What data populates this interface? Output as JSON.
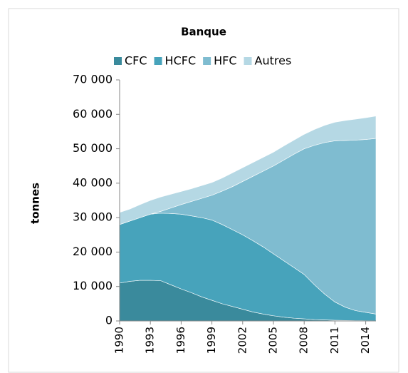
{
  "chart_data": {
    "type": "stacked_area",
    "title": "Banque",
    "ylabel": "tonnes",
    "x": [
      1990,
      1991,
      1992,
      1993,
      1994,
      1995,
      1996,
      1997,
      1998,
      1999,
      2000,
      2001,
      2002,
      2003,
      2004,
      2005,
      2006,
      2007,
      2008,
      2009,
      2010,
      2011,
      2012,
      2013,
      2014,
      2015
    ],
    "xlim": [
      1990,
      2015
    ],
    "xticks": [
      1990,
      1993,
      1996,
      1999,
      2002,
      2005,
      2008,
      2011,
      2014
    ],
    "ylim": [
      0,
      70000
    ],
    "yticks": [
      0,
      {
        "value": 10000,
        "label": "10 000"
      },
      {
        "value": 20000,
        "label": "20 000"
      },
      {
        "value": 30000,
        "label": "30 000"
      },
      {
        "value": 40000,
        "label": "40 000"
      },
      {
        "value": 50000,
        "label": "50 000"
      },
      {
        "value": 60000,
        "label": "60 000"
      },
      {
        "value": 70000,
        "label": "70 000"
      }
    ],
    "legend": "top",
    "series": [
      {
        "name": "CFC",
        "color": "#3a8a9c",
        "values": [
          11000,
          11500,
          11800,
          11800,
          11700,
          10500,
          9300,
          8200,
          7000,
          6000,
          5000,
          4200,
          3400,
          2600,
          2000,
          1500,
          1100,
          800,
          600,
          400,
          300,
          200,
          150,
          100,
          80,
          50
        ]
      },
      {
        "name": "HCFC",
        "color": "#47a3bb",
        "values": [
          17000,
          17500,
          18200,
          19200,
          19600,
          20700,
          21700,
          22300,
          23000,
          23300,
          23000,
          22300,
          21600,
          20700,
          19500,
          18000,
          16400,
          14700,
          12900,
          10100,
          7500,
          5300,
          3850,
          2900,
          2420,
          1950
        ]
      },
      {
        "name": "HFC",
        "color": "#7fbcd0",
        "values": [
          0,
          0,
          0,
          0,
          500,
          1600,
          2800,
          4200,
          5600,
          7200,
          9700,
          12500,
          15500,
          18700,
          22000,
          25500,
          29200,
          32900,
          36500,
          40500,
          44000,
          46800,
          48400,
          49500,
          50200,
          51000
        ]
      },
      {
        "name": "Autres",
        "color": "#b5d8e4",
        "values": [
          3500,
          3500,
          3800,
          4000,
          4200,
          4000,
          3800,
          3700,
          3700,
          3700,
          3800,
          4000,
          4000,
          4000,
          4000,
          4000,
          4100,
          4100,
          4200,
          4600,
          5000,
          5400,
          5800,
          6100,
          6300,
          6500
        ]
      }
    ]
  }
}
